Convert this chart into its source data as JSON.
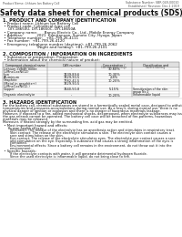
{
  "title": "Safety data sheet for chemical products (SDS)",
  "header_left": "Product Name: Lithium Ion Battery Cell",
  "header_right_l1": "Substance Number: SBR-049-00010",
  "header_right_l2": "Established / Revision: Dec.1 2019",
  "section1_title": "1. PRODUCT AND COMPANY IDENTIFICATION",
  "section1_lines": [
    " • Product name: Lithium Ion Battery Cell",
    " • Product code: Cylindrical-type cell",
    "     DIY-18650U, DIY-18650C, DIY-18650A",
    " • Company name:      Banyu Electric Co., Ltd., Mobile Energy Company",
    " • Address:            2021  Kamitanuan, Sumoto City, Hyogo, Japan",
    " • Telephone number:   +81-799-26-4111",
    " • Fax number:  +81-799-26-4120",
    " • Emergency telephone number (daytime): +81-799-26-2062",
    "                              (Night and holiday): +81-799-26-2101"
  ],
  "section2_title": "2. COMPOSITION / INFORMATION ON INGREDIENTS",
  "section2_sub1": " • Substance or preparation: Preparation",
  "section2_sub2": " • Information about the chemical nature of product:",
  "table_header_row1": [
    "Component chemical name",
    "CAS number",
    "Concentration /",
    "Classification and"
  ],
  "table_header_row2": [
    "Several name",
    "",
    "Concentration range",
    "hazard labeling"
  ],
  "table_rows": [
    [
      "Lithium cobalt oxide",
      "-",
      "30-60%",
      ""
    ],
    [
      "(LiMnxCoxNiO2)",
      "",
      "",
      ""
    ],
    [
      "Iron",
      "7439-89-6",
      "10-30%",
      ""
    ],
    [
      "Aluminum",
      "7429-90-5",
      "2-8%",
      ""
    ],
    [
      "Graphite",
      "7782-42-5",
      "10-20%",
      ""
    ],
    [
      "(Metal in graphite+)",
      "7429-90-5",
      "",
      ""
    ],
    [
      "(LiMnxCoxNiO2-)",
      "",
      "",
      ""
    ],
    [
      "Copper",
      "7440-50-8",
      "5-15%",
      "Sensitization of the skin"
    ],
    [
      "",
      "",
      "",
      "group No.2"
    ],
    [
      "Organic electrolyte",
      "-",
      "10-20%",
      "Inflammable liquid"
    ]
  ],
  "section3_title": "3. HAZARDS IDENTIFICATION",
  "section3_para1": [
    "For the battery cell, chemical substances are stored in a hermetically sealed metal case, designed to withstand",
    "temperatures and pressures-accumulations during normal use. As a result, during normal use, there is no",
    "physical danger of ignition or explosion and there is no danger of hazardous materials leakage.",
    "However, if exposed to a fire, added mechanical shocks, decomposed, when electrolyte substances may issue,",
    "the gas release cannot be operated. The battery cell case will be breached of fire-patterns, hazardous",
    "materials may be released.",
    "Moreover, if heated strongly by the surrounding fire, acid gas may be emitted."
  ],
  "section3_bullet1_title": " • Most important hazard and effects:",
  "section3_bullet1_body": [
    "     Human health effects:",
    "       Inhalation: The release of the electrolyte has an anesthesia action and stimulates in respiratory tract.",
    "       Skin contact: The release of the electrolyte stimulates a skin. The electrolyte skin contact causes a",
    "       sore and stimulation on the skin.",
    "       Eye contact: The release of the electrolyte stimulates eyes. The electrolyte eye contact causes a sore",
    "       and stimulation on the eye. Especially, a substance that causes a strong inflammation of the eyes is",
    "       contained.",
    "       Environmental effects: Since a battery cell remains in the environment, do not throw out it into the",
    "       environment."
  ],
  "section3_bullet2_title": " • Specific hazards:",
  "section3_bullet2_body": [
    "       If the electrolyte contacts with water, it will generate detrimental hydrogen fluoride.",
    "       Since the used electrolyte is inflammable liquid, do not bring close to fire."
  ],
  "bg_color": "#ffffff",
  "text_color": "#111111",
  "line_color": "#000000",
  "table_border_color": "#777777",
  "title_fontsize": 5.5,
  "section_title_fontsize": 3.6,
  "body_fontsize": 2.9,
  "header_fontsize": 2.6
}
